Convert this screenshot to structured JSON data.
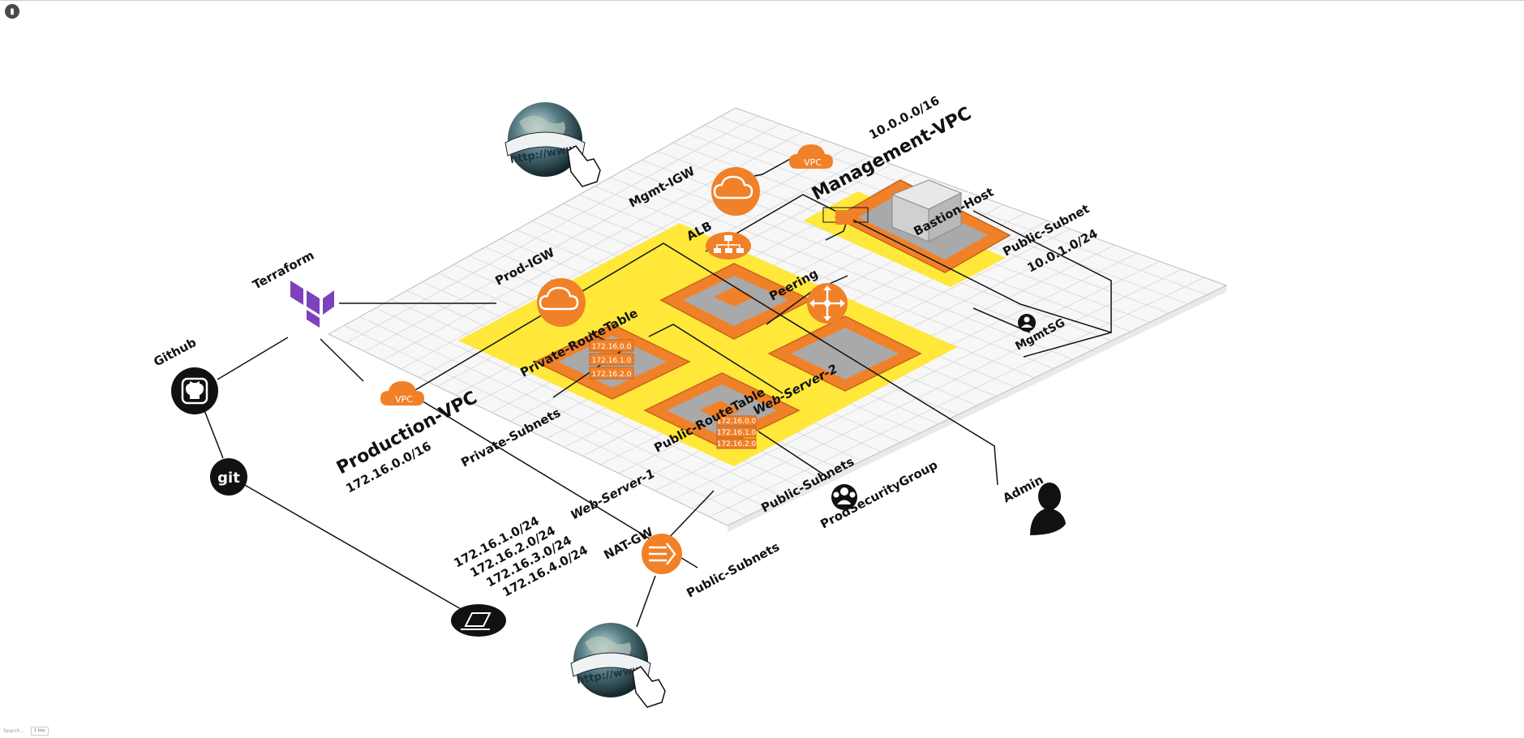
{
  "toolbar": {
    "menu_icon": "document-icon",
    "search_placeholder": "Search...",
    "key_hint": "1 key"
  },
  "labels": {
    "terraform": "Terraform",
    "github": "Github",
    "git": "git",
    "prod_igw": "Prod-IGW",
    "mgmt_igw": "Mgmt-IGW",
    "alb": "ALB",
    "peering": "Peering",
    "management_vpc": "Management-VPC",
    "mgmt_cidr": "10.0.0.0/16",
    "bastion_host": "Bastion-Host",
    "public_subnet": "Public-Subnet",
    "public_subnet_cidr": "10.0.1.0/24",
    "mgmt_sg": "MgmtSG",
    "production_vpc": "Production-VPC",
    "prod_cidr": "172.16.0.0/16",
    "private_route_table": "Private-RouteTable",
    "public_route_table": "Public-RouteTable",
    "private_subnets": "Private-Subnets",
    "public_subnets_1": "Public-Subnets",
    "public_subnets_2": "Public-Subnets",
    "web_server_1": "Web-Server-1",
    "web_server_2": "Web-Server-2",
    "nat_gw": "NAT-GW",
    "prod_security_group": "ProdSecurityGroup",
    "admin": "Admin",
    "vpc_badge": "VPC",
    "globe_url": "http://www"
  },
  "route_table_entries": [
    "172.16.0.0",
    "172.16.1.0",
    "172.16.2.0"
  ],
  "subnet_cidrs": [
    "172.16.1.0/24",
    "172.16.2.0/24",
    "172.16.3.0/24",
    "172.16.4.0/24"
  ],
  "colors": {
    "aws_orange": "#f08129",
    "subnet_yellow": "#ffe83a",
    "tile_gray": "#a9a9a9",
    "terraform_purple": "#7b42bc",
    "grid_line": "#d6d6d6",
    "platform_top": "#f7f7f7"
  }
}
